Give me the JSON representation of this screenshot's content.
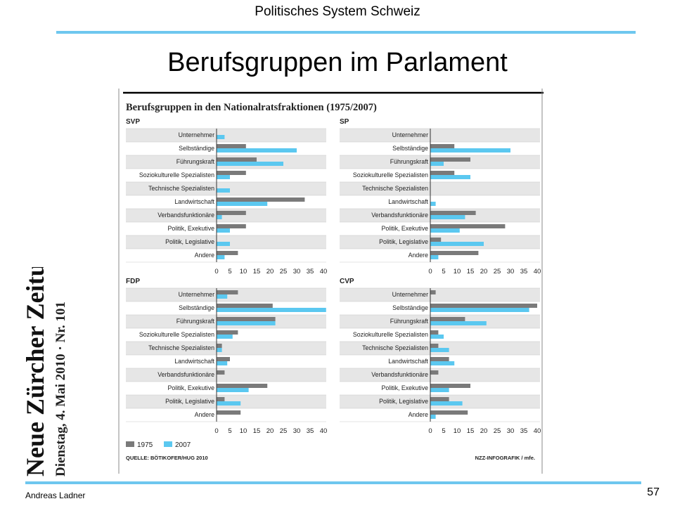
{
  "slide": {
    "header": "Politisches System Schweiz",
    "title": "Berufsgruppen im Parlament",
    "author": "Andreas Ladner",
    "page_number": "57"
  },
  "masthead": {
    "name": "Neue Zürcher Zeitung",
    "dateline": "Dienstag, 4. Mai 2010 · Nr. 101"
  },
  "colors": {
    "rule": "#6ec7ef",
    "series_1975": "#7a7a7a",
    "series_2007": "#5bc8f0",
    "row_band": "#e6e6e6"
  },
  "chart_data": {
    "type": "bar",
    "title": "Berufsgruppen in den Nationalratsfraktionen (1975/2007)",
    "categories": [
      "Unternehmer",
      "Selbständige",
      "Führungskraft",
      "Soziokulturelle Spezialisten",
      "Technische Spezialisten",
      "Landwirtschaft",
      "Verbandsfunktionäre",
      "Politik, Exekutive",
      "Politik, Legislative",
      "Andere"
    ],
    "xlim": [
      0,
      40
    ],
    "ticks": [
      0,
      5,
      10,
      15,
      20,
      25,
      30,
      35,
      40
    ],
    "legend": {
      "position": "bottom-left",
      "items": [
        {
          "label": "1975"
        },
        {
          "label": "2007"
        }
      ]
    },
    "source": "QUELLE: BÖTIKOFER/HUG 2010",
    "credit": "NZZ-INFOGRAFIK / mfe.",
    "panels": [
      {
        "party": "SVP",
        "v1975": [
          0,
          11,
          15,
          11,
          0,
          33,
          11,
          11,
          0,
          8
        ],
        "v2007": [
          3,
          30,
          25,
          5,
          5,
          19,
          2,
          5,
          5,
          3
        ]
      },
      {
        "party": "SP",
        "v1975": [
          0,
          9,
          15,
          9,
          0,
          0,
          17,
          28,
          4,
          18
        ],
        "v2007": [
          0,
          30,
          5,
          15,
          0,
          2,
          13,
          11,
          20,
          3
        ]
      },
      {
        "party": "FDP",
        "v1975": [
          8,
          21,
          22,
          8,
          2,
          5,
          3,
          19,
          3,
          9
        ],
        "v2007": [
          4,
          41,
          22,
          6,
          2,
          4,
          0,
          12,
          9,
          0
        ]
      },
      {
        "party": "CVP",
        "v1975": [
          2,
          40,
          13,
          3,
          3,
          7,
          3,
          15,
          7,
          14
        ],
        "v2007": [
          0,
          37,
          21,
          5,
          7,
          9,
          0,
          7,
          12,
          2
        ]
      }
    ]
  }
}
